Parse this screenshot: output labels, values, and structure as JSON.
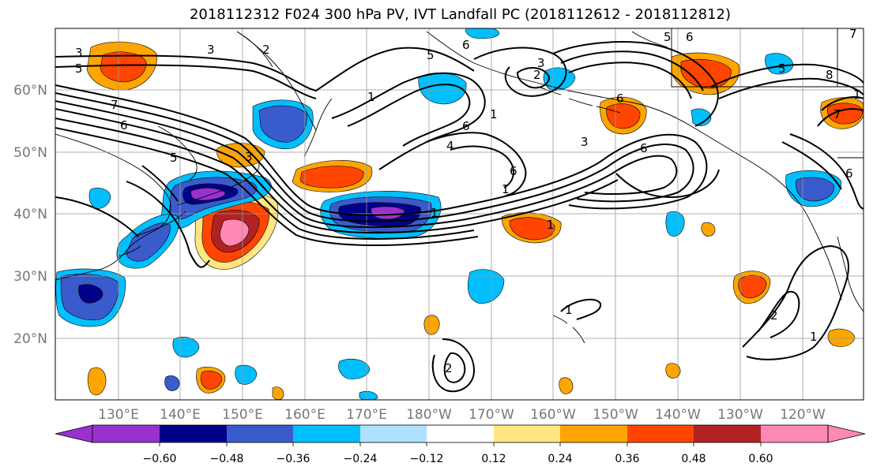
{
  "title": "2018112312 F024 300 hPa PV, IVT Landfall PC (2018112612 - 2018112812)",
  "lat_labels": [
    "60°N",
    "50°N",
    "40°N",
    "30°N",
    "20°N"
  ],
  "lon_labels": [
    "130°E",
    "140°E",
    "150°E",
    "160°E",
    "170°E",
    "180°W",
    "170°W",
    "160°W",
    "150°W",
    "140°W",
    "130°W",
    "120°W"
  ],
  "colorbar": {
    "tick_labels": [
      "−0.60",
      "−0.48",
      "−0.36",
      "−0.24",
      "−0.12",
      "0.12",
      "0.24",
      "0.36",
      "0.48",
      "0.60"
    ],
    "colors": [
      "#9932CC",
      "#00008B",
      "#3A5BCC",
      "#00BFFF",
      "#B0E0FF",
      "#FFFFFF",
      "#FFE680",
      "#FFA500",
      "#FF4500",
      "#B22222",
      "#FF88B4"
    ]
  },
  "contour_labels": [
    "3",
    "3",
    "2",
    "5",
    "5",
    "6",
    "1",
    "1",
    "6",
    "7",
    "6",
    "3",
    "4",
    "5",
    "6",
    "1",
    "3",
    "6",
    "1",
    "1",
    "2",
    "6",
    "6",
    "7",
    "8",
    "7",
    "5",
    "6",
    "5",
    "1",
    "3",
    "2",
    "1",
    "1",
    "2"
  ]
}
